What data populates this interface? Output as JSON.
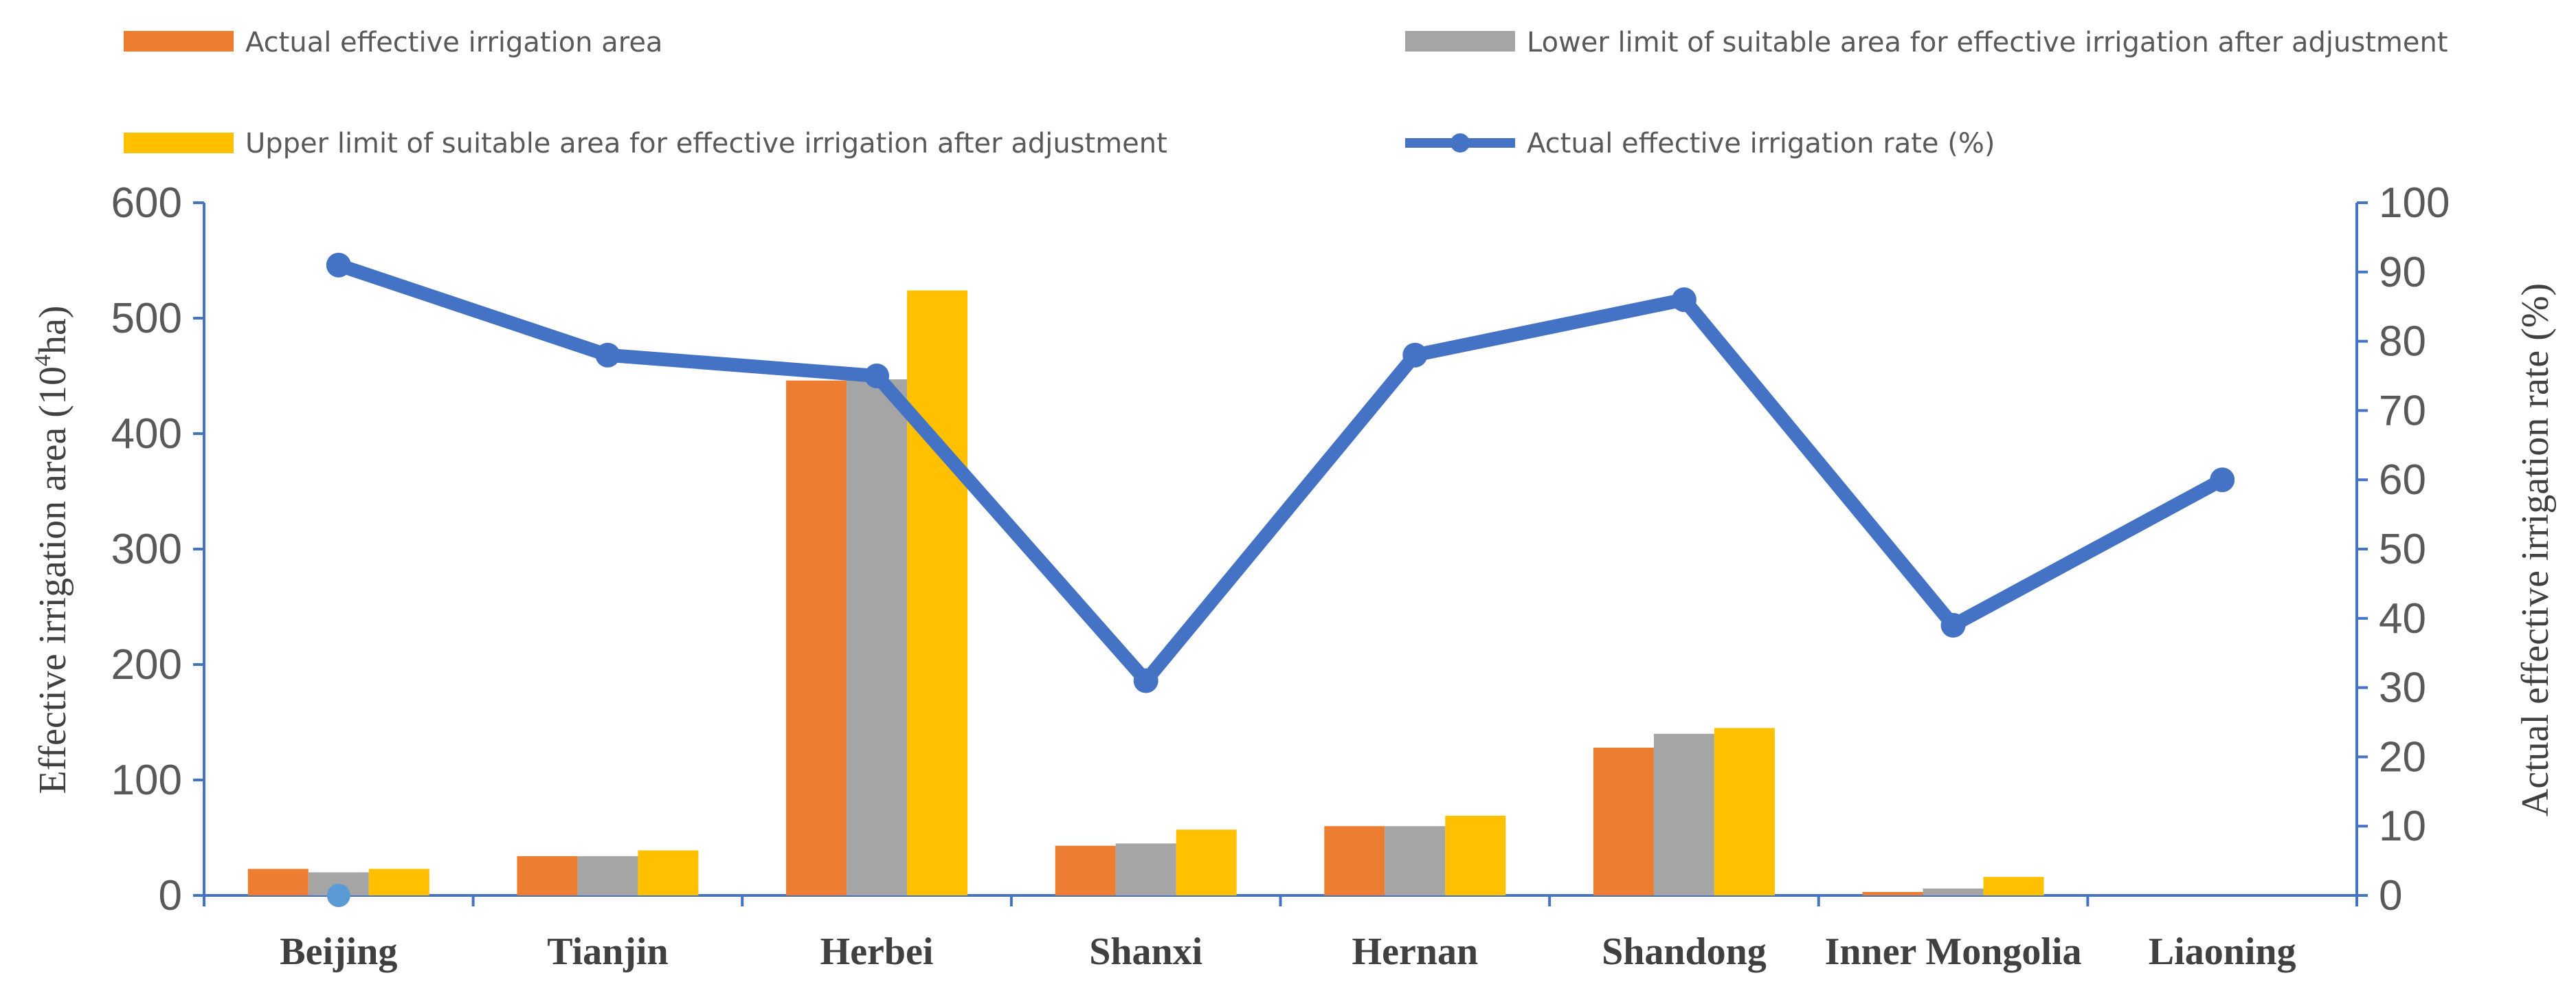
{
  "chart_data": {
    "type": "bar",
    "categories": [
      "Beijing",
      "Tianjin",
      "Herbei",
      "Shanxi",
      "Hernan",
      "Shandong",
      "Inner Mongolia",
      "Liaoning"
    ],
    "series": [
      {
        "name": "Actual effective irrigation area",
        "type": "bar",
        "axis": "left",
        "color": "#ED7D31",
        "values": [
          23,
          34,
          446,
          43,
          60,
          128,
          3,
          0
        ]
      },
      {
        "name": "Lower limit of suitable area for effective irrigation after adjustment",
        "type": "bar",
        "axis": "left",
        "color": "#A5A5A5",
        "values": [
          20,
          34,
          447,
          45,
          60,
          140,
          6,
          0
        ]
      },
      {
        "name": "Upper limit of suitable area for effective irrigation after adjustment",
        "type": "bar",
        "axis": "left",
        "color": "#FFC000",
        "values": [
          23,
          39,
          524,
          57,
          69,
          145,
          16,
          0
        ]
      },
      {
        "name": "Actual effective irrigation rate (%)",
        "type": "line",
        "axis": "right",
        "color": "#4472C4",
        "values": [
          91,
          78,
          75,
          31,
          78,
          86,
          39,
          60
        ]
      }
    ],
    "yleft": {
      "label_main": "Effective irrigation area (10",
      "label_sup": "4",
      "label_end": "ha)",
      "ylim": [
        0,
        600
      ],
      "ticks": [
        "0",
        "100",
        "200",
        "300",
        "400",
        "500",
        "600"
      ]
    },
    "yright": {
      "label": "Actual effective irrigation rate (%)",
      "ylim": [
        0,
        100
      ],
      "ticks": [
        "0",
        "10",
        "20",
        "30",
        "40",
        "50",
        "60",
        "70",
        "80",
        "90",
        "100"
      ]
    },
    "stray_marker": {
      "category": "Beijing",
      "value": 0,
      "color": "#5B9BD5"
    },
    "legend_position": "top"
  }
}
